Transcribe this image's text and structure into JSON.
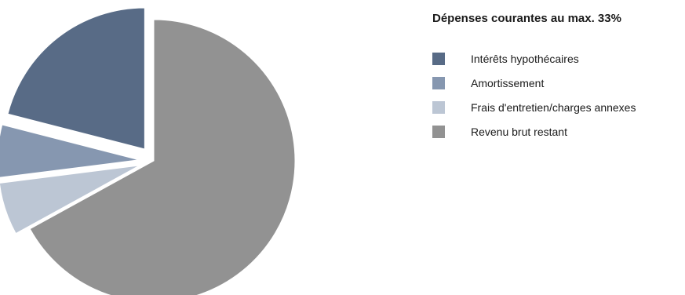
{
  "chart_data": {
    "type": "pie",
    "title": "Dépenses courantes au max. 33%",
    "categories": [
      "Intérêts hypothécaires",
      "Amortissement",
      "Frais d'entretien/charges annexes",
      "Revenu brut restant"
    ],
    "values": [
      21,
      6,
      6,
      67
    ],
    "unit": "%",
    "colors": [
      "#586b86",
      "#8697b0",
      "#bcc6d4",
      "#929292"
    ],
    "exploded": [
      true,
      true,
      true,
      false
    ],
    "legend": "right"
  }
}
